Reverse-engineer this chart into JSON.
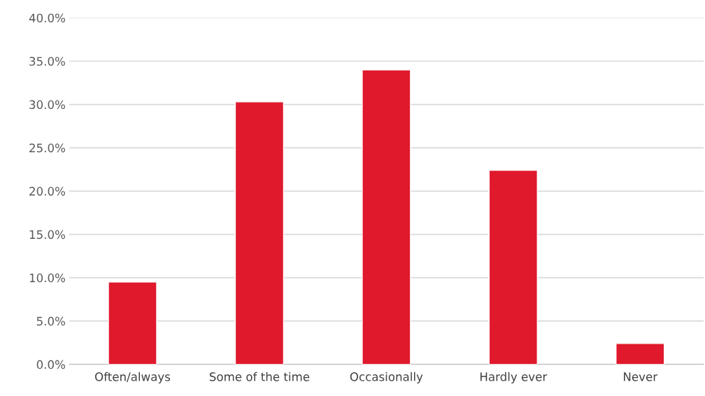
{
  "chart_data": {
    "type": "bar",
    "categories": [
      "Often/always",
      "Some of the time",
      "Occasionally",
      "Hardly ever",
      "Never"
    ],
    "values": [
      9.5,
      30.3,
      34.0,
      22.4,
      2.4
    ],
    "color": "#e0192d",
    "ylim": [
      0,
      40
    ],
    "yticks": [
      {
        "value": 0,
        "label": "0.0%"
      },
      {
        "value": 5,
        "label": "5.0%"
      },
      {
        "value": 10,
        "label": "10.0%"
      },
      {
        "value": 15,
        "label": "15.0%"
      },
      {
        "value": 20,
        "label": "20.0%"
      },
      {
        "value": 25,
        "label": "25.0%"
      },
      {
        "value": 30,
        "label": "30.0%"
      },
      {
        "value": 35,
        "label": "35.0%"
      },
      {
        "value": 40,
        "label": "40.0%"
      }
    ],
    "grid": "y"
  }
}
